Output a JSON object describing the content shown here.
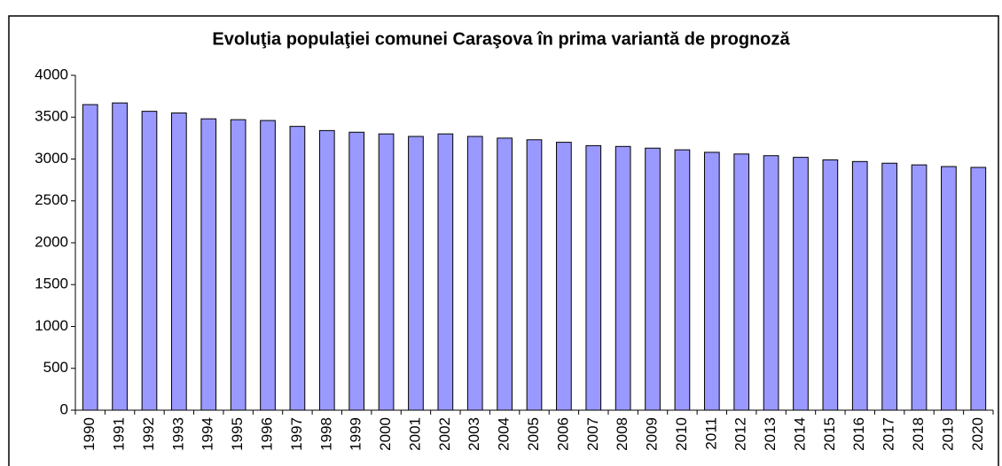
{
  "chart_data": {
    "type": "bar",
    "title": "Evoluţia populaţiei comunei Caraşova în prima variantă de prognoză",
    "categories": [
      "1990",
      "1991",
      "1992",
      "1993",
      "1994",
      "1995",
      "1996",
      "1997",
      "1998",
      "1999",
      "2000",
      "2001",
      "2002",
      "2003",
      "2004",
      "2005",
      "2006",
      "2007",
      "2008",
      "2009",
      "2010",
      "2011",
      "2012",
      "2013",
      "2014",
      "2015",
      "2016",
      "2017",
      "2018",
      "2019",
      "2020"
    ],
    "values": [
      3650,
      3670,
      3570,
      3550,
      3480,
      3470,
      3460,
      3390,
      3340,
      3320,
      3300,
      3270,
      3300,
      3270,
      3250,
      3230,
      3200,
      3160,
      3150,
      3130,
      3110,
      3080,
      3060,
      3040,
      3020,
      2990,
      2970,
      2950,
      2930,
      2910,
      2900
    ],
    "color": "#9999ff",
    "ylim": [
      0,
      4000
    ],
    "yticks": [
      0,
      500,
      1000,
      1500,
      2000,
      2500,
      3000,
      3500,
      4000
    ],
    "grid": false
  }
}
